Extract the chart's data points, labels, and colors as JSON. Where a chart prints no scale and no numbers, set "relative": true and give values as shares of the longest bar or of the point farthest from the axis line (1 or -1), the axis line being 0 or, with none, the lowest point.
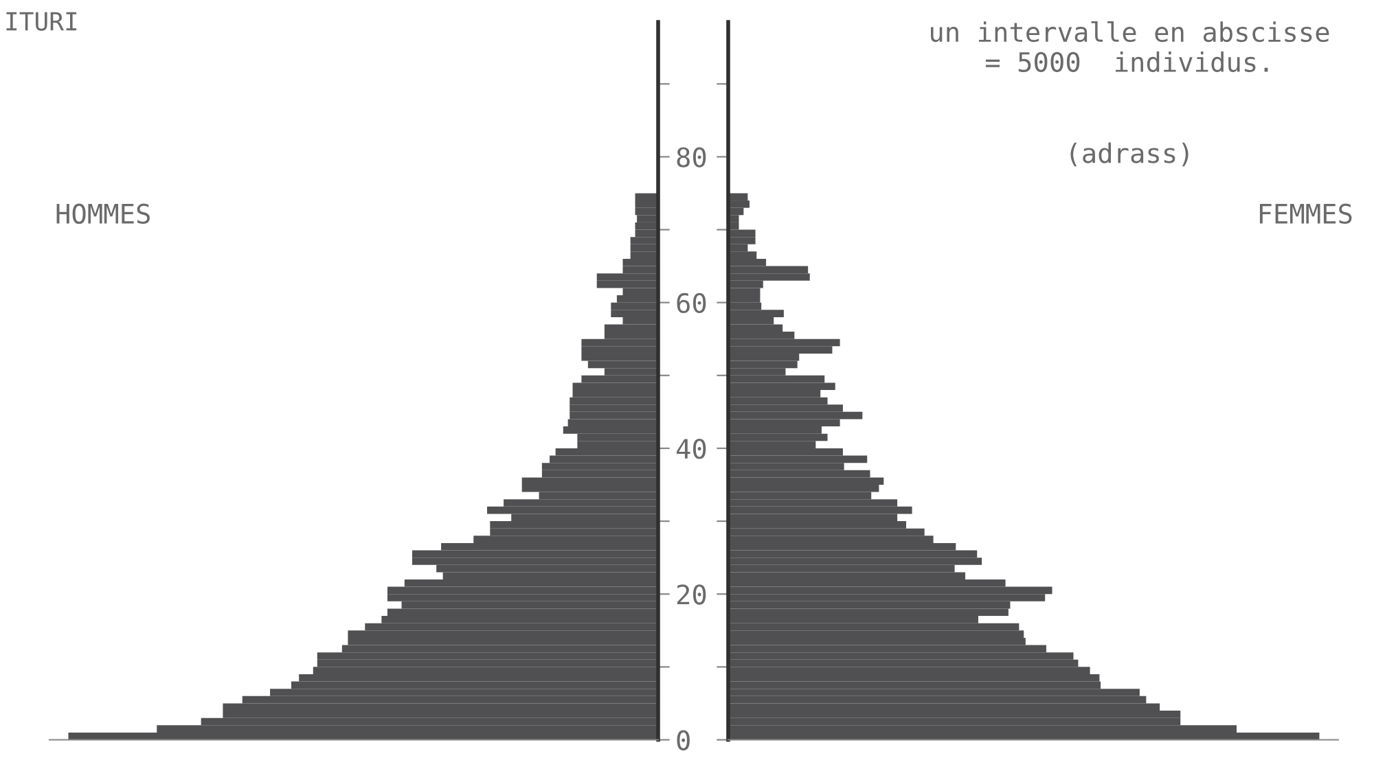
{
  "chart_data": [
    {
      "type": "bar",
      "orientation": "horizontal",
      "relative": true,
      "title": "ITURI",
      "annotations": [
        "HOMMES"
      ],
      "color": "#505052",
      "x": [
        0,
        1,
        2,
        3,
        4,
        5,
        6,
        7,
        8,
        9,
        10,
        11,
        12,
        13,
        14,
        15,
        16,
        17,
        18,
        19,
        20,
        21,
        22,
        23,
        24,
        25,
        26,
        27,
        28,
        29,
        30,
        31,
        32,
        33,
        34,
        35,
        36,
        37,
        38,
        39,
        40,
        41,
        42,
        43,
        44,
        45,
        46,
        47,
        48,
        49,
        50,
        51,
        52,
        53,
        54,
        55,
        56,
        57,
        58,
        59,
        60,
        61,
        62,
        63,
        64,
        65,
        66,
        67,
        68,
        69,
        70,
        71,
        72,
        73,
        74
      ],
      "values": [
        1,
        0.85,
        0.775,
        0.738,
        0.738,
        0.705,
        0.658,
        0.622,
        0.609,
        0.585,
        0.578,
        0.578,
        0.536,
        0.526,
        0.526,
        0.497,
        0.469,
        0.459,
        0.435,
        0.459,
        0.459,
        0.43,
        0.365,
        0.376,
        0.417,
        0.417,
        0.368,
        0.313,
        0.285,
        0.285,
        0.249,
        0.29,
        0.262,
        0.202,
        0.231,
        0.231,
        0.197,
        0.197,
        0.184,
        0.174,
        0.137,
        0.137,
        0.161,
        0.153,
        0.15,
        0.15,
        0.15,
        0.145,
        0.145,
        0.13,
        0.091,
        0.119,
        0.13,
        0.13,
        0.13,
        0.091,
        0.091,
        0.06,
        0.08,
        0.08,
        0.07,
        0.06,
        0.104,
        0.104,
        0.06,
        0.06,
        0.047,
        0.047,
        0.047,
        0.039,
        0.039,
        0.036,
        0.039,
        0.039,
        0.039
      ],
      "ylim": [
        0,
        98.5
      ],
      "yticks": [
        {
          "value": 0,
          "label": "0"
        },
        {
          "value": 10,
          "label": null
        },
        {
          "value": 20,
          "label": "20"
        },
        {
          "value": 30,
          "label": null
        },
        {
          "value": 40,
          "label": "40"
        },
        {
          "value": 50,
          "label": null
        },
        {
          "value": 60,
          "label": "60"
        },
        {
          "value": 70,
          "label": null
        },
        {
          "value": 80,
          "label": "80"
        },
        {
          "value": 90,
          "label": null
        }
      ],
      "tick_labels": "y",
      "grid": false,
      "legend": false
    },
    {
      "type": "bar",
      "orientation": "horizontal",
      "relative": true,
      "annotations": [
        "un intervalle en abscisse\n= 5000  individus.",
        "(adrass)",
        "FEMMES"
      ],
      "color": "#505052",
      "x": [
        0,
        1,
        2,
        3,
        4,
        5,
        6,
        7,
        8,
        9,
        10,
        11,
        12,
        13,
        14,
        15,
        16,
        17,
        18,
        19,
        20,
        21,
        22,
        23,
        24,
        25,
        26,
        27,
        28,
        29,
        30,
        31,
        32,
        33,
        34,
        35,
        36,
        37,
        38,
        39,
        40,
        41,
        42,
        43,
        44,
        45,
        46,
        47,
        48,
        49,
        50,
        51,
        52,
        53,
        54,
        55,
        56,
        57,
        58,
        59,
        60,
        61,
        62,
        63,
        64,
        65,
        66,
        67,
        68,
        69,
        70,
        71,
        72,
        73,
        74
      ],
      "values": [
        1,
        0.86,
        0.765,
        0.765,
        0.73,
        0.707,
        0.696,
        0.63,
        0.628,
        0.612,
        0.592,
        0.584,
        0.538,
        0.503,
        0.5,
        0.492,
        0.423,
        0.474,
        0.477,
        0.536,
        0.548,
        0.469,
        0.401,
        0.383,
        0.429,
        0.421,
        0.385,
        0.347,
        0.332,
        0.301,
        0.286,
        0.311,
        0.286,
        0.242,
        0.255,
        0.263,
        0.24,
        0.196,
        0.235,
        0.194,
        0.148,
        0.168,
        0.158,
        0.189,
        0.227,
        0.194,
        0.168,
        0.156,
        0.181,
        0.163,
        0.097,
        0.117,
        0.12,
        0.176,
        0.189,
        0.112,
        0.092,
        0.077,
        0.094,
        0.056,
        0.054,
        0.054,
        0.059,
        0.138,
        0.135,
        0.064,
        0.048,
        0.033,
        0.046,
        0.046,
        0.018,
        0.018,
        0.026,
        0.036,
        0.033
      ],
      "ylim": [
        0,
        98.5
      ],
      "yticks": [
        {
          "value": 0,
          "label": null
        },
        {
          "value": 10,
          "label": null
        },
        {
          "value": 20,
          "label": null
        },
        {
          "value": 30,
          "label": null
        },
        {
          "value": 40,
          "label": null
        },
        {
          "value": 50,
          "label": null
        },
        {
          "value": 60,
          "label": null
        },
        {
          "value": 70,
          "label": null
        },
        {
          "value": 80,
          "label": null
        },
        {
          "value": 90,
          "label": null
        }
      ],
      "tick_labels": false,
      "grid": false,
      "legend": false
    }
  ]
}
